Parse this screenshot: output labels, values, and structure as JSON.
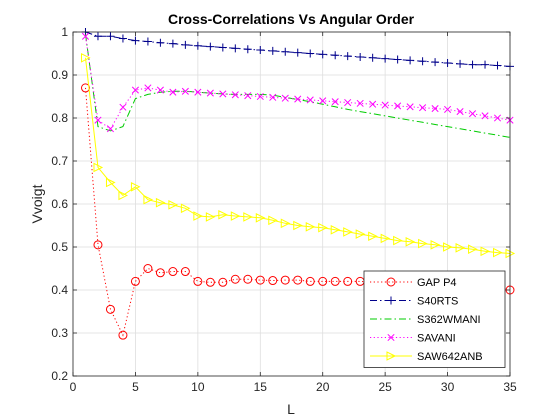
{
  "chart_data": {
    "type": "line",
    "title": "Cross-Correlations Vs Angular Order",
    "xlabel": "L",
    "ylabel": "Vvoigt",
    "xlim": [
      0,
      35
    ],
    "ylim": [
      0.2,
      1.0
    ],
    "xticks": [
      0,
      5,
      10,
      15,
      20,
      25,
      30,
      35
    ],
    "yticks": [
      0.2,
      0.3,
      0.4,
      0.5,
      0.6,
      0.7,
      0.8,
      0.9,
      1.0
    ],
    "xtick_labels": [
      "0",
      "5",
      "10",
      "15",
      "20",
      "25",
      "30",
      "35"
    ],
    "ytick_labels": [
      "0.2",
      "0.3",
      "0.4",
      "0.5",
      "0.6",
      "0.7",
      "0.8",
      "0.9",
      "1"
    ],
    "grid": true,
    "legend_position": "bottom-right",
    "x": [
      1,
      2,
      3,
      4,
      5,
      6,
      7,
      8,
      9,
      10,
      11,
      12,
      13,
      14,
      15,
      16,
      17,
      18,
      19,
      20,
      21,
      22,
      23,
      24,
      25,
      26,
      27,
      28,
      29,
      30,
      31,
      32,
      33,
      34,
      35
    ],
    "series": [
      {
        "name": "GAP P4",
        "color": "#ff0000",
        "line": "dotted",
        "marker": "circle",
        "values": [
          0.87,
          0.505,
          0.355,
          0.295,
          0.42,
          0.45,
          0.44,
          0.443,
          0.443,
          0.42,
          0.418,
          0.418,
          0.425,
          0.425,
          0.423,
          0.422,
          0.423,
          0.423,
          0.42,
          0.42,
          0.42,
          0.42,
          0.42,
          0.418,
          0.415,
          0.413,
          0.41,
          0.41,
          0.41,
          0.408,
          0.405,
          0.405,
          0.403,
          0.4,
          0.4
        ]
      },
      {
        "name": "S40RTS",
        "color": "#00008b",
        "line": "dashdot",
        "marker": "plus",
        "values": [
          1.0,
          0.99,
          0.99,
          0.985,
          0.98,
          0.978,
          0.975,
          0.973,
          0.97,
          0.968,
          0.966,
          0.964,
          0.962,
          0.96,
          0.958,
          0.956,
          0.954,
          0.952,
          0.95,
          0.948,
          0.946,
          0.944,
          0.942,
          0.94,
          0.938,
          0.936,
          0.934,
          0.932,
          0.93,
          0.928,
          0.926,
          0.924,
          0.924,
          0.922,
          0.92
        ]
      },
      {
        "name": "S362WMANI",
        "color": "#00cc00",
        "line": "dashdot",
        "marker": "none",
        "values": [
          0.995,
          0.78,
          0.77,
          0.78,
          0.845,
          0.855,
          0.86,
          0.862,
          0.862,
          0.86,
          0.858,
          0.856,
          0.855,
          0.855,
          0.855,
          0.853,
          0.848,
          0.843,
          0.838,
          0.832,
          0.826,
          0.82,
          0.815,
          0.81,
          0.805,
          0.8,
          0.795,
          0.79,
          0.785,
          0.78,
          0.775,
          0.77,
          0.765,
          0.76,
          0.755
        ]
      },
      {
        "name": "SAVANI",
        "color": "#ff00ff",
        "line": "dotted",
        "marker": "x",
        "values": [
          0.99,
          0.795,
          0.775,
          0.825,
          0.865,
          0.87,
          0.865,
          0.86,
          0.862,
          0.86,
          0.858,
          0.856,
          0.854,
          0.852,
          0.85,
          0.848,
          0.846,
          0.844,
          0.842,
          0.84,
          0.838,
          0.836,
          0.834,
          0.832,
          0.83,
          0.828,
          0.826,
          0.824,
          0.822,
          0.82,
          0.815,
          0.81,
          0.805,
          0.8,
          0.795
        ]
      },
      {
        "name": "SAW642ANB",
        "color": "#ffff00",
        "line": "solid",
        "marker": "triangle-right",
        "values": [
          0.94,
          0.685,
          0.65,
          0.62,
          0.64,
          0.61,
          0.603,
          0.598,
          0.59,
          0.572,
          0.57,
          0.575,
          0.572,
          0.57,
          0.568,
          0.562,
          0.555,
          0.55,
          0.547,
          0.545,
          0.54,
          0.535,
          0.53,
          0.525,
          0.52,
          0.515,
          0.512,
          0.508,
          0.505,
          0.5,
          0.498,
          0.495,
          0.49,
          0.487,
          0.485
        ]
      }
    ]
  }
}
